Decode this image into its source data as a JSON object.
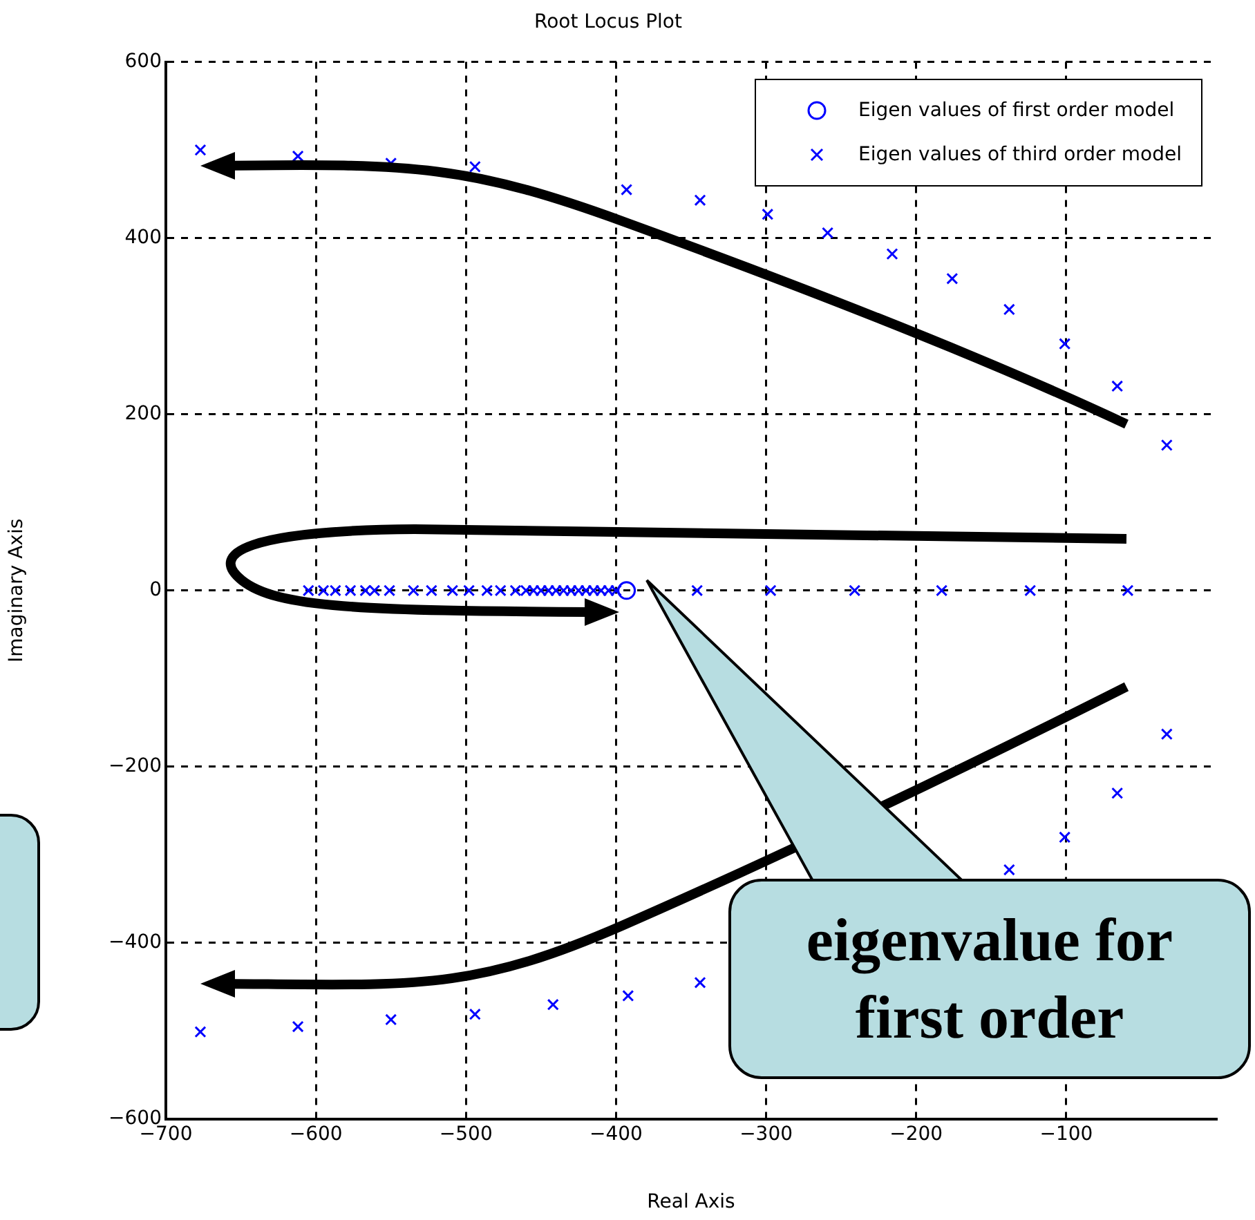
{
  "chart_data": {
    "type": "scatter",
    "title": "Root Locus Plot",
    "xlabel": "Real Axis",
    "ylabel": "Imaginary Axis",
    "xlim": [
      -700,
      0
    ],
    "xticks": [
      -700,
      -600,
      -500,
      -400,
      -300,
      -200,
      -100
    ],
    "ylim": [
      -600,
      600
    ],
    "yticks": [
      -600,
      -400,
      -200,
      0,
      200,
      400,
      600
    ],
    "grid": true,
    "legend": "top right",
    "annotations": [
      "eigenvalue for first order"
    ],
    "series": [
      {
        "name": "Eigen values of first order model",
        "color": "#0000ff",
        "marker": "circle",
        "x": [
          -393
        ],
        "values": [
          0
        ]
      },
      {
        "name": "Eigen values of third order model",
        "color": "#0000ff",
        "marker": "cross",
        "x": [
          -677,
          -612,
          -550,
          -494,
          -393,
          -344,
          -299,
          -259,
          -216,
          -176,
          -138,
          -101,
          -66,
          -33,
          -677,
          -612,
          -550,
          -494,
          -442,
          -392,
          -344,
          -138,
          -101,
          -66,
          -33,
          -605,
          -595,
          -587,
          -577,
          -567,
          -561,
          -551,
          -535,
          -523,
          -509,
          -498,
          -486,
          -477,
          -467,
          -460,
          -455,
          -450,
          -445,
          -440,
          -435,
          -430,
          -425,
          -420,
          -415,
          -410,
          -405,
          -400,
          -346,
          -297,
          -241,
          -183,
          -124,
          -59
        ],
        "values": [
          500,
          493,
          485,
          481,
          455,
          443,
          427,
          406,
          382,
          354,
          319,
          280,
          232,
          165,
          -501,
          -495,
          -487,
          -481,
          -470,
          -460,
          -445,
          -317,
          -280,
          -230,
          -163,
          0,
          0,
          0,
          0,
          0,
          0,
          0,
          0,
          0,
          0,
          0,
          0,
          0,
          0,
          0,
          0,
          0,
          0,
          0,
          0,
          0,
          0,
          0,
          0,
          0,
          0,
          0,
          0,
          0,
          0,
          0,
          0,
          0
        ]
      }
    ]
  }
}
